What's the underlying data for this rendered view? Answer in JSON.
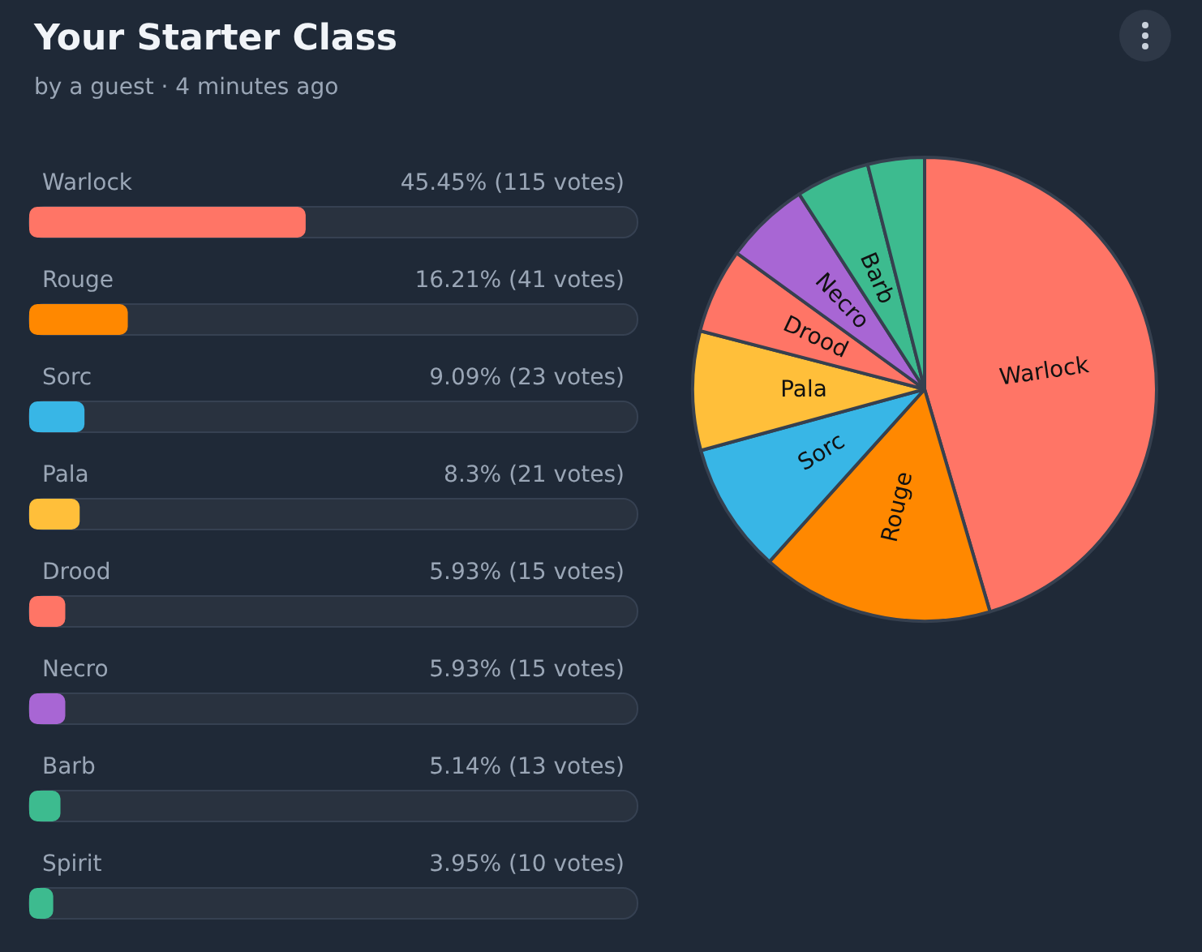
{
  "chart_data": [
    {
      "type": "bar",
      "orientation": "horizontal",
      "title": "Your Starter Class",
      "subtitle": "by a guest · 4 minutes ago",
      "categories": [
        "Warlock",
        "Rouge",
        "Sorc",
        "Pala",
        "Drood",
        "Necro",
        "Barb",
        "Spirit"
      ],
      "values": [
        45.45,
        16.21,
        9.09,
        8.3,
        5.93,
        5.93,
        5.14,
        3.95
      ],
      "colors": [
        "#ff7566",
        "#ff8800",
        "#38b6e6",
        "#ffbf3a",
        "#ff7566",
        "#a866d4",
        "#3dbb8f",
        "#3dbb8f"
      ],
      "value_labels": [
        "45.45% (115 votes)",
        "16.21% (41 votes)",
        "9.09% (23 votes)",
        "8.3% (21 votes)",
        "5.93% (15 votes)",
        "5.93% (15 votes)",
        "5.14% (13 votes)",
        "3.95% (10 votes)"
      ],
      "xlim": [
        0,
        100
      ],
      "tick_labels": "y"
    },
    {
      "type": "pie",
      "categories": [
        "Warlock",
        "Rouge",
        "Sorc",
        "Pala",
        "Drood",
        "Necro",
        "Barb",
        null
      ],
      "values": [
        45.45,
        16.21,
        9.09,
        8.3,
        5.93,
        5.93,
        5.14,
        3.95
      ],
      "colors": [
        "#ff7566",
        "#ff8800",
        "#38b6e6",
        "#ffbf3a",
        "#ff7566",
        "#a866d4",
        "#3dbb8f",
        "#3dbb8f"
      ]
    }
  ]
}
